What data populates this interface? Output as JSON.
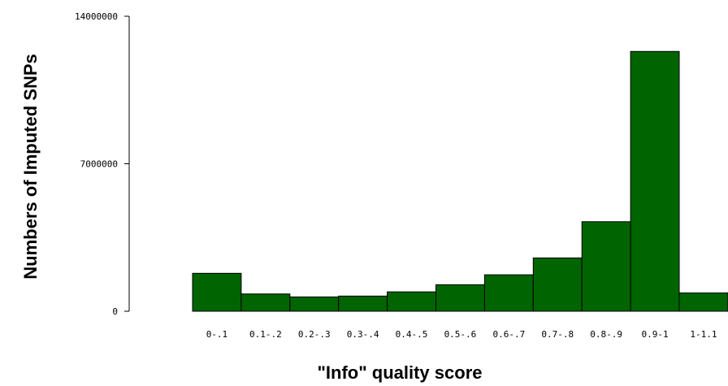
{
  "chart_data": {
    "type": "bar",
    "title": "",
    "xlabel": "\"Info\" quality score",
    "ylabel": "Numbers of Imputed SNPs",
    "categories": [
      "0-.1",
      "0.1-.2",
      "0.2-.3",
      "0.3-.4",
      "0.4-.5",
      "0.5-.6",
      "0.6-.7",
      "0.7-.8",
      "0.8-.9",
      "0.9-1",
      "1-1.1"
    ],
    "values": [
      1800000,
      820000,
      680000,
      720000,
      920000,
      1260000,
      1730000,
      2530000,
      4250000,
      12330000,
      870000
    ],
    "ylim": [
      0,
      14000000
    ],
    "yticks": [
      0,
      7000000,
      14000000
    ],
    "ytick_labels": [
      "0",
      "7000000",
      "14000000"
    ],
    "bar_color": "#006400",
    "bar_edge_color": "#000000",
    "grid": false,
    "legend": "none"
  }
}
